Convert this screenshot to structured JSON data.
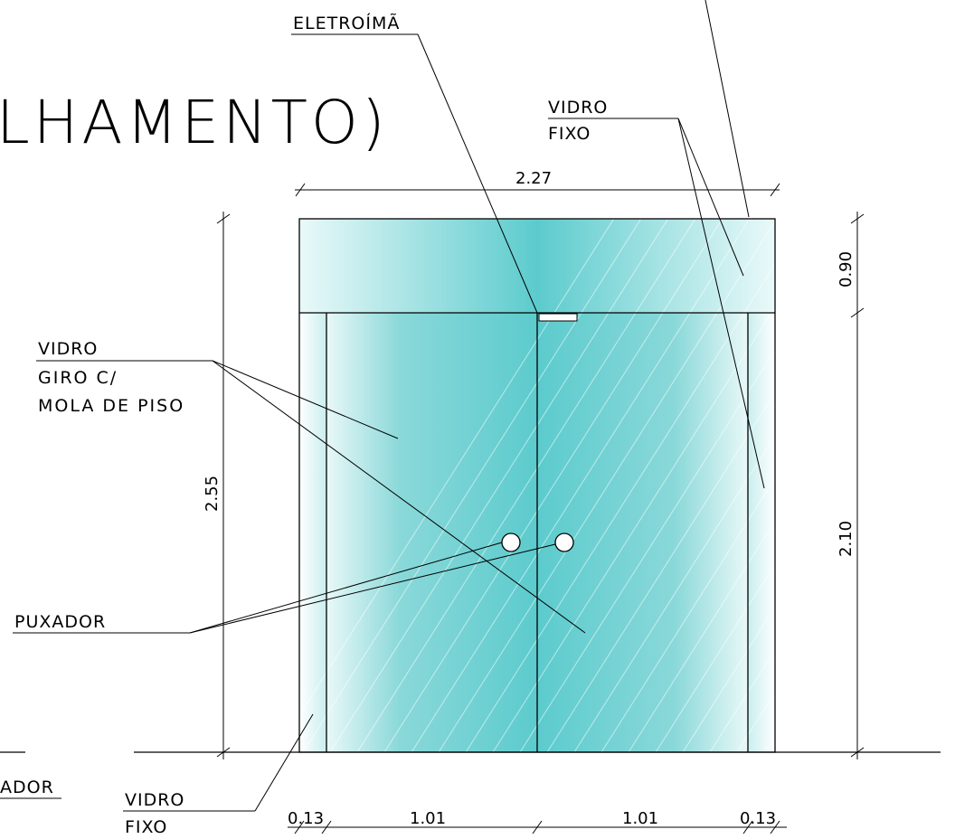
{
  "title": "LHAMENTO)",
  "labels": {
    "eletroima": "ELETROÍMÃ",
    "vidro_fixo_top_1": "VIDRO",
    "vidro_fixo_top_2": "FIXO",
    "vidro_giro_1": "VIDRO",
    "vidro_giro_2": "GIRO C/",
    "vidro_giro_3": "MOLA DE PISO",
    "puxador": "PUXADOR",
    "ador": "ADOR",
    "vidro_fixo_bottom_1": "VIDRO",
    "vidro_fixo_bottom_2": "FIXO"
  },
  "dimensions": {
    "total_width": "2.27",
    "total_height": "2.55",
    "transom_height": "0.90",
    "door_height": "2.10",
    "side_left": "0.13",
    "leaf_left": "1.01",
    "leaf_right": "1.01",
    "side_right": "0.13"
  },
  "colors": {
    "glass_center": "#5ccbcd",
    "glass_edge": "#e9f8f8",
    "line": "#000000"
  }
}
